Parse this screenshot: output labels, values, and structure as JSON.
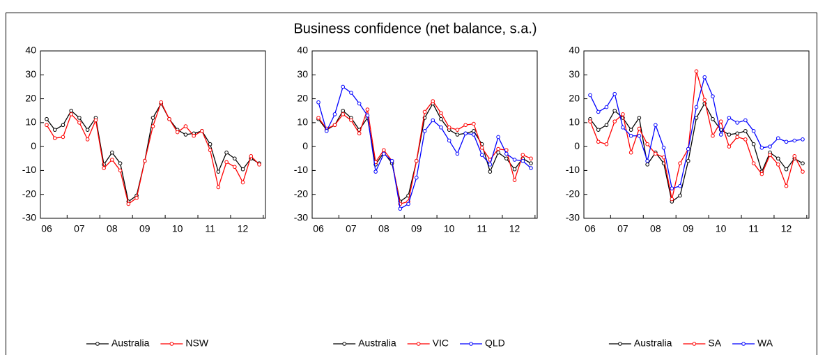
{
  "title": "Business confidence (net balance, s.a.)",
  "chart_data": [
    {
      "type": "line",
      "categories": [
        "06",
        null,
        null,
        null,
        "07",
        null,
        null,
        null,
        "08",
        null,
        null,
        null,
        "09",
        null,
        null,
        null,
        "10",
        null,
        null,
        null,
        "11",
        null,
        null,
        null,
        "12",
        null,
        null
      ],
      "series": [
        {
          "name": "Australia",
          "color": "#000000",
          "values": [
            11.5,
            7,
            9,
            15,
            12,
            7,
            12,
            -7.5,
            -2.5,
            -7,
            -23,
            -20.5,
            -6,
            12,
            18,
            11.5,
            7,
            5,
            5.5,
            6.5,
            1,
            -10.5,
            -2.5,
            -5,
            -9.5,
            -5,
            -7
          ]
        },
        {
          "name": "NSW",
          "color": "#ff0000",
          "values": [
            9,
            3.5,
            4,
            13.5,
            10,
            3,
            11,
            -9,
            -5.5,
            -10,
            -24,
            -21.5,
            -6,
            8.5,
            18.5,
            11.5,
            6,
            8.5,
            4.5,
            6.5,
            -1.5,
            -17,
            -6.5,
            -8.5,
            -15,
            -4,
            -7.5
          ]
        }
      ],
      "ylim": [
        -30,
        40
      ],
      "yticks": [
        -30,
        -20,
        -10,
        0,
        10,
        20,
        30,
        40
      ]
    },
    {
      "type": "line",
      "categories": [
        "06",
        null,
        null,
        null,
        "07",
        null,
        null,
        null,
        "08",
        null,
        null,
        null,
        "09",
        null,
        null,
        null,
        "10",
        null,
        null,
        null,
        "11",
        null,
        null,
        null,
        "12",
        null,
        null
      ],
      "series": [
        {
          "name": "Australia",
          "color": "#000000",
          "values": [
            11.5,
            7,
            9,
            15,
            12,
            7,
            12,
            -7.5,
            -2.5,
            -7,
            -23,
            -20.5,
            -6,
            12,
            18,
            11.5,
            7,
            5,
            5.5,
            6.5,
            1,
            -10.5,
            -2.5,
            -5,
            -9.5,
            -5,
            -7
          ]
        },
        {
          "name": "VIC",
          "color": "#ff0000",
          "values": [
            12,
            7.5,
            9,
            13.5,
            11,
            5.5,
            15.5,
            -6.5,
            -1.5,
            -6,
            -24,
            -23,
            -6,
            14.5,
            19,
            14,
            8,
            7,
            9,
            9.5,
            -0.5,
            -5.5,
            -1,
            -1.5,
            -14,
            -3.5,
            -5
          ]
        },
        {
          "name": "QLD",
          "color": "#0000ff",
          "values": [
            18.5,
            6.5,
            13.5,
            25,
            22.5,
            18,
            13,
            -10.5,
            -3,
            -6,
            -26,
            -24,
            -13,
            6.5,
            11,
            8,
            2.5,
            -3,
            5.5,
            5,
            -3.5,
            -7.5,
            4,
            -3,
            -5.5,
            -6,
            -9
          ]
        }
      ],
      "ylim": [
        -30,
        40
      ],
      "yticks": [
        -30,
        -20,
        -10,
        0,
        10,
        20,
        30,
        40
      ]
    },
    {
      "type": "line",
      "categories": [
        "06",
        null,
        null,
        null,
        "07",
        null,
        null,
        null,
        "08",
        null,
        null,
        null,
        "09",
        null,
        null,
        null,
        "10",
        null,
        null,
        null,
        "11",
        null,
        null,
        null,
        "12",
        null,
        null
      ],
      "series": [
        {
          "name": "Australia",
          "color": "#000000",
          "values": [
            11.5,
            7,
            9,
            15,
            12,
            7,
            12,
            -7.5,
            -2.5,
            -7,
            -23,
            -20.5,
            -6,
            12,
            18,
            11.5,
            7,
            5,
            5.5,
            6.5,
            1,
            -10.5,
            -2.5,
            -5,
            -9.5,
            -5,
            -7
          ]
        },
        {
          "name": "SA",
          "color": "#ff0000",
          "values": [
            10.5,
            2,
            1,
            10.5,
            13.5,
            -2.5,
            7.5,
            1,
            -3,
            -4.5,
            -22,
            -7,
            -1,
            31.5,
            19.5,
            4.5,
            10.5,
            0,
            4,
            3,
            -7,
            -11.5,
            -3.5,
            -7.5,
            -16.5,
            -4,
            -10.5
          ]
        },
        {
          "name": "WA",
          "color": "#0000ff",
          "values": [
            21.5,
            14.5,
            16.5,
            22,
            8,
            4.5,
            4.5,
            -6,
            9,
            -0.5,
            -17.5,
            -16.5,
            -1,
            16.5,
            29,
            21,
            5,
            12,
            10,
            11,
            6.5,
            -0.5,
            0,
            3.5,
            2,
            2.5,
            3
          ]
        }
      ],
      "ylim": [
        -30,
        40
      ],
      "yticks": [
        -30,
        -20,
        -10,
        0,
        10,
        20,
        30,
        40
      ]
    }
  ]
}
